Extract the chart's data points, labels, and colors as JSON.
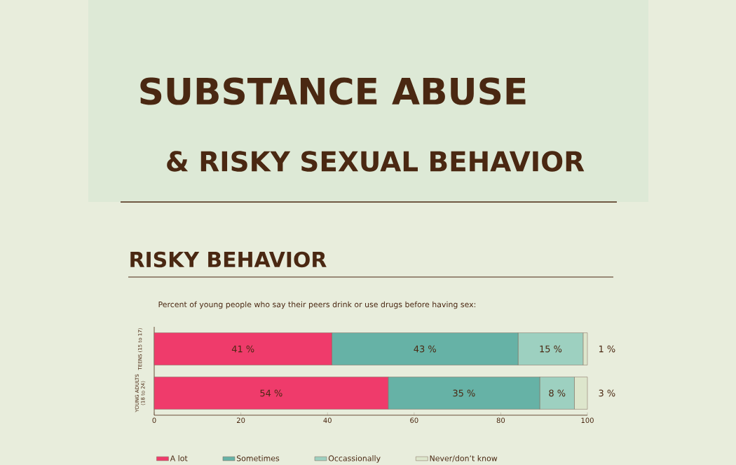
{
  "chart_data": {
    "type": "bar",
    "orientation": "horizontal",
    "stacked": true,
    "title": "RISKY BEHAVIOR",
    "subtitle": "Percent of young people who say their peers drink or use drugs before having sex:",
    "annotations": [
      "SUBSTANCE ABUSE",
      "& RISKY SEXUAL BEHAVIOR"
    ],
    "categories": [
      "TEENS (15 to 17)",
      "YOUNG ADULTS (18 to 24)"
    ],
    "series": [
      {
        "name": "A lot",
        "color": "#ef3b6b",
        "values": [
          41,
          54
        ],
        "value_labels": [
          "41 %",
          "54 %"
        ]
      },
      {
        "name": "Sometimes",
        "color": "#66b2a6",
        "values": [
          43,
          35
        ],
        "value_labels": [
          "43 %",
          "35 %"
        ]
      },
      {
        "name": "Occassionally",
        "color": "#9dd0c0",
        "values": [
          15,
          8
        ],
        "value_labels": [
          "15 %",
          "8 %"
        ]
      },
      {
        "name": "Never/don’t know",
        "color": "#dde6cc",
        "values": [
          1,
          3
        ],
        "value_labels": [
          "1 %",
          "3 %"
        ]
      }
    ],
    "xlim": [
      0,
      100
    ],
    "xticks": [
      0,
      20,
      40,
      60,
      80,
      100
    ],
    "legend": "bottom"
  }
}
